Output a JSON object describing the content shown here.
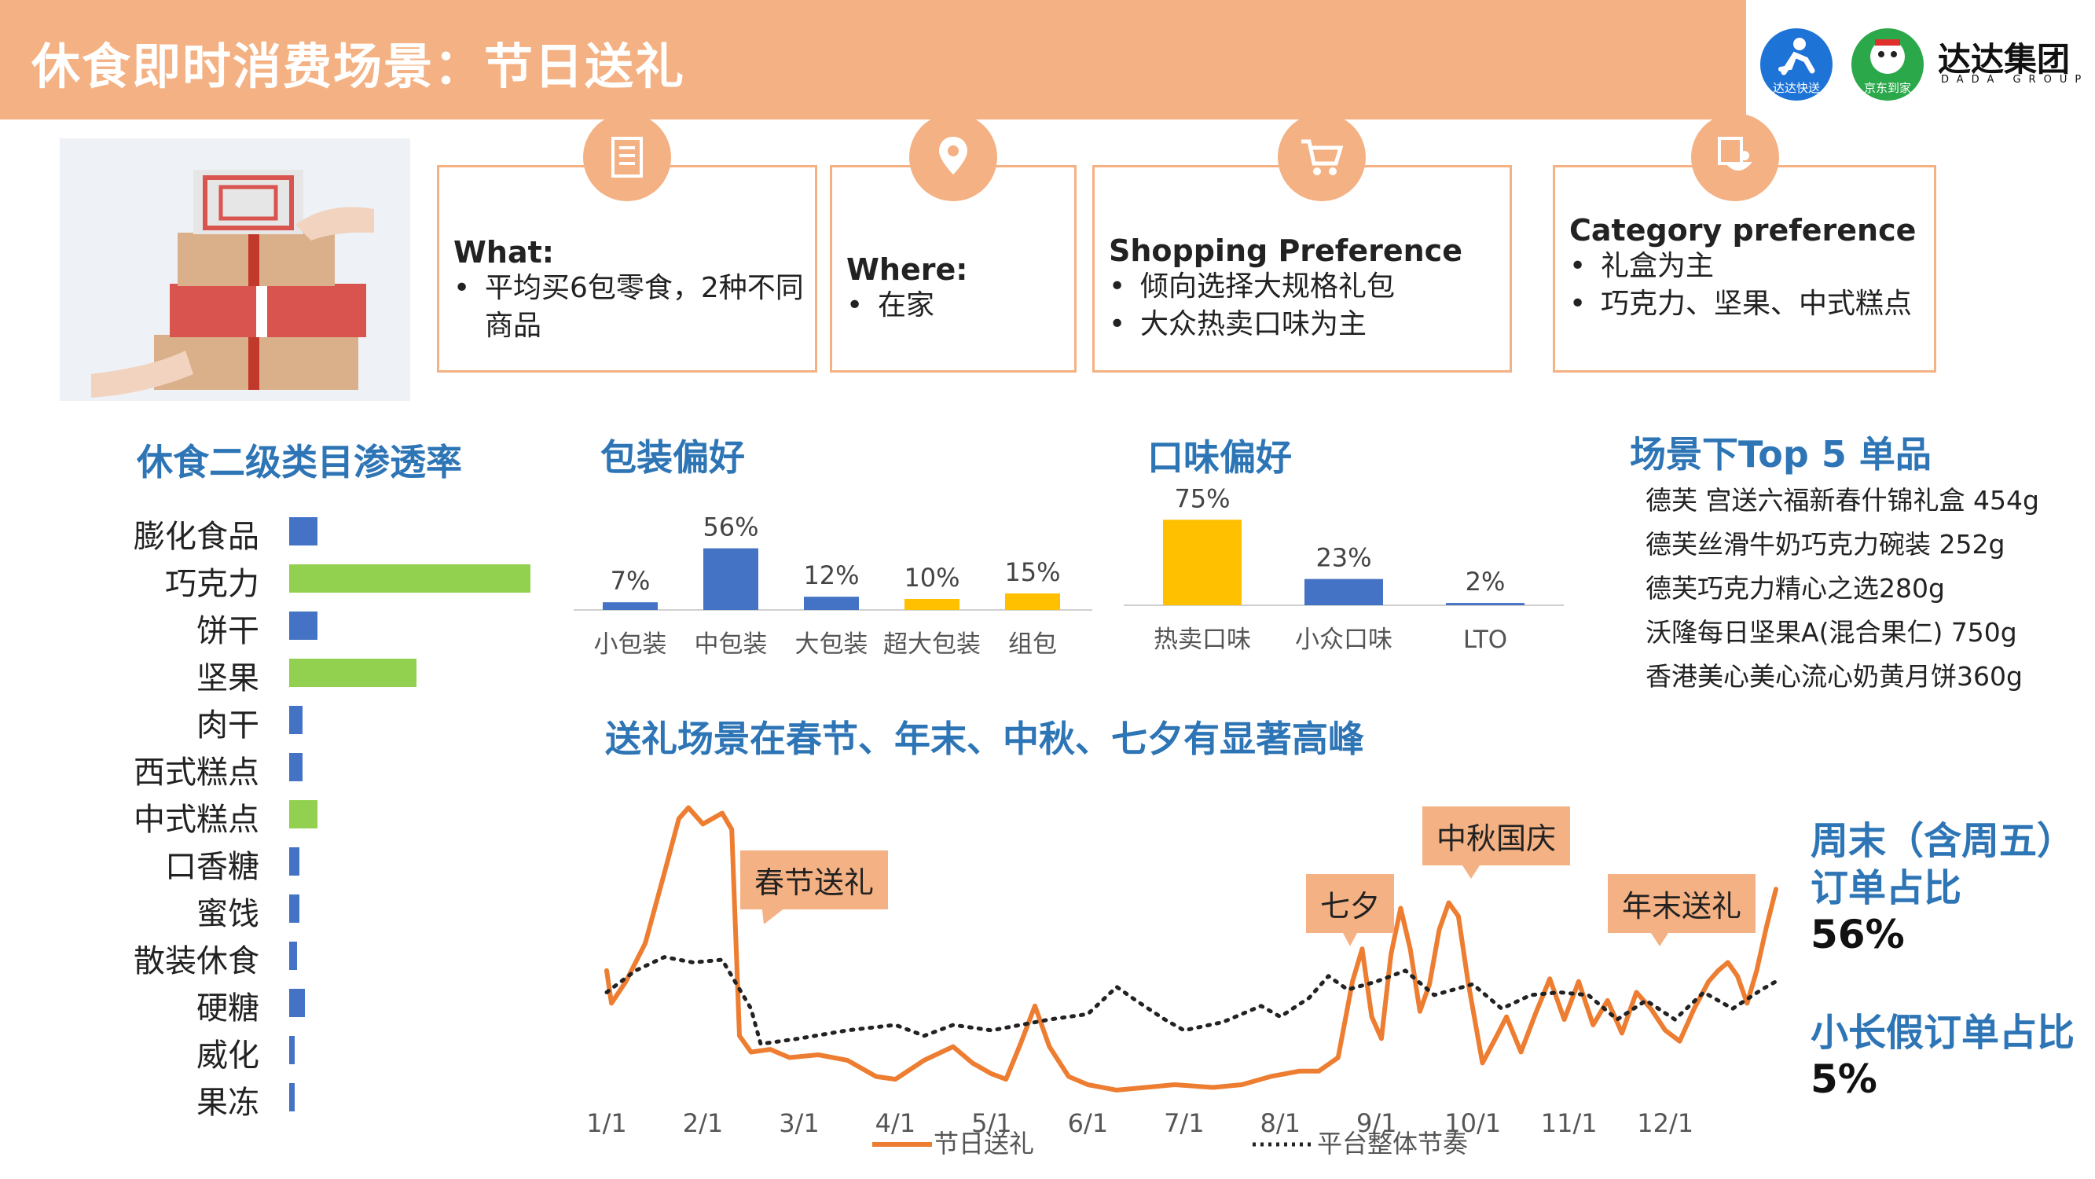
{
  "header": {
    "title": "休食即时消费场景：节日送礼"
  },
  "logos": {
    "kuaisong": "达达快送",
    "jddaojia": "京东到家",
    "group_name": "达达集团",
    "group_en": "DADA GROUP"
  },
  "info_boxes": [
    {
      "icon": "list-icon",
      "title": "What:",
      "items": [
        "平均买6包零食，2种不同商品"
      ]
    },
    {
      "icon": "location-pin-icon",
      "title": "Where:",
      "items": [
        "在家"
      ]
    },
    {
      "icon": "shopping-cart-icon",
      "title": "Shopping Preference",
      "items": [
        "倾向选择大规格礼包",
        "大众热卖口味为主"
      ]
    },
    {
      "icon": "food-bowl-icon",
      "title": "Category preference",
      "items": [
        "礼盒为主",
        "巧克力、坚果、中式糕点"
      ]
    }
  ],
  "bullet": "•",
  "sections": {
    "category": "休食二级类目渗透率",
    "packaging": "包装偏好",
    "flavor": "口味偏好",
    "top5": "场景下Top 5 单品",
    "trend": "送礼场景在春节、年末、中秋、七夕有显著高峰"
  },
  "top5_items": [
    "德芙 宫送六福新春什锦礼盒 454g",
    "德芙丝滑牛奶巧克力碗装 252g",
    "德芙巧克力精心之选280g",
    "沃隆每日坚果A(混合果仁) 750g",
    "香港美心美心流心奶黄月饼360g"
  ],
  "stats": [
    {
      "label": "周末（含周五）订单占比",
      "value": "56%"
    },
    {
      "label": "小长假订单占比",
      "value": "5%"
    }
  ],
  "colors": {
    "accent": "#f4b183",
    "blue": "#4472c4",
    "green": "#92d050",
    "yellow": "#ffc000",
    "title_blue": "#2e75b6",
    "line_orange": "#ed7d31"
  },
  "chart_data": [
    {
      "id": "category-penetration",
      "type": "bar",
      "orientation": "horizontal",
      "title": "休食二级类目渗透率",
      "categories": [
        "膨化食品",
        "巧克力",
        "饼干",
        "坚果",
        "肉干",
        "西式糕点",
        "中式糕点",
        "口香糖",
        "蜜饯",
        "散装休食",
        "硬糖",
        "威化",
        "果冻"
      ],
      "values": [
        11,
        93,
        11,
        49,
        5,
        5,
        11,
        4,
        4,
        3,
        6,
        2,
        2
      ],
      "highlight": [
        "巧克力",
        "坚果",
        "中式糕点"
      ],
      "bar_colors": [
        "blue",
        "green",
        "blue",
        "green",
        "blue",
        "blue",
        "green",
        "blue",
        "blue",
        "blue",
        "blue",
        "blue",
        "blue"
      ]
    },
    {
      "id": "packaging-preference",
      "type": "bar",
      "title": "包装偏好",
      "categories": [
        "小包装",
        "中包装",
        "大包装",
        "超大包装",
        "组包"
      ],
      "values": [
        7,
        56,
        12,
        10,
        15
      ],
      "value_labels": [
        "7%",
        "56%",
        "12%",
        "10%",
        "15%"
      ],
      "bar_colors": [
        "blue",
        "blue",
        "blue",
        "yellow",
        "yellow"
      ],
      "ylim": [
        0,
        60
      ]
    },
    {
      "id": "flavor-preference",
      "type": "bar",
      "title": "口味偏好",
      "categories": [
        "热卖口味",
        "小众口味",
        "LTO"
      ],
      "values": [
        75,
        23,
        2
      ],
      "value_labels": [
        "75%",
        "23%",
        "2%"
      ],
      "bar_colors": [
        "yellow",
        "blue",
        "blue"
      ],
      "ylim": [
        0,
        80
      ]
    },
    {
      "id": "gift-trend",
      "type": "line",
      "title": "送礼场景在春节、年末、中秋、七夕有显著高峰",
      "x_ticks": [
        "1/1",
        "2/1",
        "3/1",
        "4/1",
        "5/1",
        "6/1",
        "7/1",
        "8/1",
        "9/1",
        "10/1",
        "11/1",
        "12/1"
      ],
      "xlim": [
        1,
        13.15
      ],
      "ylim": [
        0,
        110
      ],
      "series": [
        {
          "name": "节日送礼",
          "style": "solid",
          "color": "#ed7d31",
          "points": [
            [
              1.0,
              42
            ],
            [
              1.05,
              30
            ],
            [
              1.2,
              38
            ],
            [
              1.4,
              52
            ],
            [
              1.6,
              78
            ],
            [
              1.75,
              98
            ],
            [
              1.85,
              102
            ],
            [
              2.0,
              96
            ],
            [
              2.2,
              100
            ],
            [
              2.3,
              94
            ],
            [
              2.38,
              18
            ],
            [
              2.5,
              12
            ],
            [
              2.7,
              13
            ],
            [
              2.9,
              10
            ],
            [
              3.2,
              11
            ],
            [
              3.5,
              9
            ],
            [
              3.8,
              3
            ],
            [
              4.0,
              2
            ],
            [
              4.3,
              9
            ],
            [
              4.6,
              14
            ],
            [
              4.8,
              8
            ],
            [
              5.0,
              4
            ],
            [
              5.15,
              2
            ],
            [
              5.3,
              15
            ],
            [
              5.45,
              29
            ],
            [
              5.6,
              14
            ],
            [
              5.8,
              3
            ],
            [
              6.0,
              0
            ],
            [
              6.3,
              -2
            ],
            [
              6.6,
              -1
            ],
            [
              6.9,
              0
            ],
            [
              7.3,
              -1
            ],
            [
              7.6,
              0
            ],
            [
              7.9,
              3
            ],
            [
              8.2,
              5
            ],
            [
              8.4,
              5
            ],
            [
              8.6,
              10
            ],
            [
              8.75,
              38
            ],
            [
              8.85,
              50
            ],
            [
              8.95,
              25
            ],
            [
              9.05,
              17
            ],
            [
              9.15,
              48
            ],
            [
              9.25,
              65
            ],
            [
              9.35,
              50
            ],
            [
              9.45,
              27
            ],
            [
              9.55,
              37
            ],
            [
              9.65,
              57
            ],
            [
              9.75,
              67
            ],
            [
              9.85,
              62
            ],
            [
              9.95,
              38
            ],
            [
              10.1,
              8
            ],
            [
              10.25,
              18
            ],
            [
              10.35,
              25
            ],
            [
              10.5,
              12
            ],
            [
              10.65,
              26
            ],
            [
              10.8,
              39
            ],
            [
              10.95,
              24
            ],
            [
              11.1,
              38
            ],
            [
              11.25,
              22
            ],
            [
              11.4,
              31
            ],
            [
              11.55,
              19
            ],
            [
              11.7,
              34
            ],
            [
              11.85,
              28
            ],
            [
              12.0,
              20
            ],
            [
              12.15,
              16
            ],
            [
              12.3,
              28
            ],
            [
              12.45,
              38
            ],
            [
              12.55,
              42
            ],
            [
              12.65,
              45
            ],
            [
              12.75,
              40
            ],
            [
              12.85,
              30
            ],
            [
              12.95,
              42
            ],
            [
              13.05,
              58
            ],
            [
              13.15,
              72
            ]
          ]
        },
        {
          "name": "平台整体节奏",
          "style": "dotted",
          "color": "#222222",
          "points": [
            [
              1.0,
              34
            ],
            [
              1.3,
              42
            ],
            [
              1.6,
              47
            ],
            [
              1.9,
              45
            ],
            [
              2.2,
              46
            ],
            [
              2.5,
              28
            ],
            [
              2.6,
              15
            ],
            [
              3.0,
              17
            ],
            [
              3.5,
              20
            ],
            [
              4.0,
              22
            ],
            [
              4.3,
              18
            ],
            [
              4.6,
              22
            ],
            [
              5.0,
              20
            ],
            [
              5.3,
              22
            ],
            [
              5.6,
              24
            ],
            [
              6.0,
              26
            ],
            [
              6.3,
              36
            ],
            [
              6.5,
              31
            ],
            [
              6.8,
              24
            ],
            [
              7.0,
              20
            ],
            [
              7.4,
              23
            ],
            [
              7.8,
              29
            ],
            [
              8.0,
              25
            ],
            [
              8.3,
              32
            ],
            [
              8.5,
              40
            ],
            [
              8.7,
              35
            ],
            [
              9.0,
              38
            ],
            [
              9.3,
              42
            ],
            [
              9.6,
              33
            ],
            [
              10.0,
              37
            ],
            [
              10.3,
              28
            ],
            [
              10.6,
              33
            ],
            [
              10.9,
              34
            ],
            [
              11.2,
              33
            ],
            [
              11.5,
              24
            ],
            [
              11.8,
              31
            ],
            [
              12.1,
              24
            ],
            [
              12.4,
              34
            ],
            [
              12.7,
              28
            ],
            [
              13.0,
              35
            ],
            [
              13.15,
              38
            ]
          ]
        }
      ],
      "annotations": [
        "春节送礼",
        "七夕",
        "中秋国庆",
        "年末送礼"
      ],
      "legend": [
        "节日送礼",
        "平台整体节奏"
      ],
      "legend_position": "bottom"
    }
  ]
}
